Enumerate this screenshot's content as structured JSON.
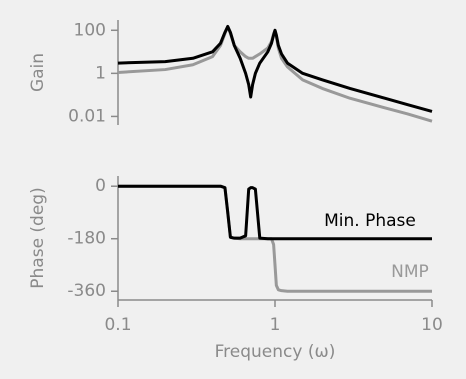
{
  "chart_data": [
    {
      "type": "line",
      "ylabel": "Gain",
      "yscale": "log",
      "xscale": "log",
      "x": [
        0.1,
        0.2,
        0.3,
        0.4,
        0.45,
        0.48,
        0.5,
        0.52,
        0.55,
        0.6,
        0.65,
        0.68,
        0.7,
        0.72,
        0.75,
        0.8,
        0.9,
        0.95,
        0.98,
        1,
        1.02,
        1.05,
        1.1,
        1.2,
        1.5,
        2,
        3,
        5,
        7,
        10
      ],
      "xlim": [
        0.1,
        10
      ],
      "ylim": [
        0.004,
        300
      ],
      "yticks": [
        100,
        1,
        0.01
      ],
      "series": [
        {
          "color": "#000000",
          "values": [
            3,
            3.5,
            5,
            10,
            25,
            80,
            150,
            80,
            20,
            5,
            1,
            0.3,
            0.08,
            0.3,
            1,
            3,
            10,
            25,
            60,
            100,
            60,
            20,
            8,
            3,
            1,
            0.5,
            0.2,
            0.07,
            0.035,
            0.017
          ]
        },
        {
          "color": "#999999",
          "values": [
            1.1,
            1.5,
            2.5,
            6,
            20,
            70,
            150,
            70,
            20,
            10,
            6,
            5,
            5,
            5,
            6,
            8,
            15,
            30,
            70,
            100,
            50,
            15,
            5,
            2,
            0.5,
            0.2,
            0.07,
            0.025,
            0.013,
            0.006
          ]
        }
      ]
    },
    {
      "type": "line",
      "ylabel": "Phase  (deg)",
      "xlabel": "Frequency  (ω)",
      "xscale": "log",
      "x": [
        0.1,
        0.2,
        0.3,
        0.4,
        0.45,
        0.48,
        0.5,
        0.52,
        0.55,
        0.6,
        0.65,
        0.68,
        0.7,
        0.72,
        0.75,
        0.8,
        0.9,
        0.95,
        0.98,
        1,
        1.02,
        1.05,
        1.1,
        1.2,
        1.5,
        2,
        3,
        5,
        7,
        10
      ],
      "xlim": [
        0.1,
        10
      ],
      "xticks": [
        0.1,
        1,
        10
      ],
      "ylim": [
        -390,
        35
      ],
      "yticks": [
        0,
        -180,
        -360
      ],
      "series": [
        {
          "name": "Min. Phase",
          "color": "#000000",
          "values": [
            0,
            0,
            0,
            0,
            0,
            -5,
            -90,
            -175,
            -178,
            -178,
            -170,
            -10,
            -5,
            -5,
            -10,
            -178,
            -180,
            -180,
            -180,
            -180,
            -180,
            -180,
            -180,
            -180,
            -180,
            -180,
            -180,
            -180,
            -180,
            -180
          ]
        },
        {
          "name": "NMP",
          "color": "#999999",
          "values": [
            0,
            0,
            0,
            0,
            0,
            -5,
            -90,
            -175,
            -178,
            -180,
            -180,
            -180,
            -180,
            -180,
            -180,
            -180,
            -180,
            -180,
            -200,
            -270,
            -340,
            -355,
            -358,
            -360,
            -360,
            -360,
            -360,
            -360,
            -360,
            -360
          ]
        }
      ]
    }
  ]
}
